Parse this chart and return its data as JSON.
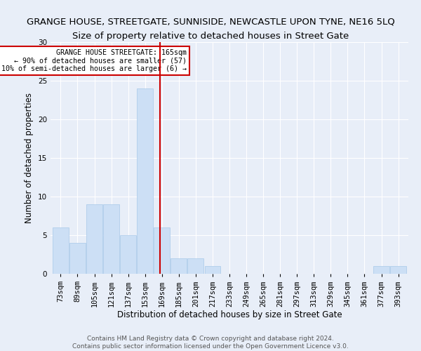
{
  "title": "GRANGE HOUSE, STREETGATE, SUNNISIDE, NEWCASTLE UPON TYNE, NE16 5LQ",
  "subtitle": "Size of property relative to detached houses in Street Gate",
  "xlabel": "Distribution of detached houses by size in Street Gate",
  "ylabel": "Number of detached properties",
  "categories": [
    "73sqm",
    "89sqm",
    "105sqm",
    "121sqm",
    "137sqm",
    "153sqm",
    "169sqm",
    "185sqm",
    "201sqm",
    "217sqm",
    "233sqm",
    "249sqm",
    "265sqm",
    "281sqm",
    "297sqm",
    "313sqm",
    "329sqm",
    "345sqm",
    "361sqm",
    "377sqm",
    "393sqm"
  ],
  "values": [
    6,
    4,
    9,
    9,
    5,
    24,
    6,
    2,
    2,
    1,
    0,
    0,
    0,
    0,
    0,
    0,
    0,
    0,
    0,
    1,
    1
  ],
  "bar_color": "#ccdff5",
  "bar_edge_color": "#a8c8e8",
  "vline_x": 5.875,
  "vline_color": "#cc0000",
  "annotation_text": "GRANGE HOUSE STREETGATE: 165sqm\n← 90% of detached houses are smaller (57)\n10% of semi-detached houses are larger (6) →",
  "annotation_box_color": "#ffffff",
  "annotation_box_edge_color": "#cc0000",
  "ylim": [
    0,
    30
  ],
  "yticks": [
    0,
    5,
    10,
    15,
    20,
    25,
    30
  ],
  "footer": "Contains HM Land Registry data © Crown copyright and database right 2024.\nContains public sector information licensed under the Open Government Licence v3.0.",
  "bg_color": "#e8eef8",
  "plot_bg_color": "#e8eef8",
  "title_fontsize": 9.5,
  "subtitle_fontsize": 9.5,
  "xlabel_fontsize": 8.5,
  "ylabel_fontsize": 8.5,
  "tick_fontsize": 7.5,
  "footer_fontsize": 6.5
}
